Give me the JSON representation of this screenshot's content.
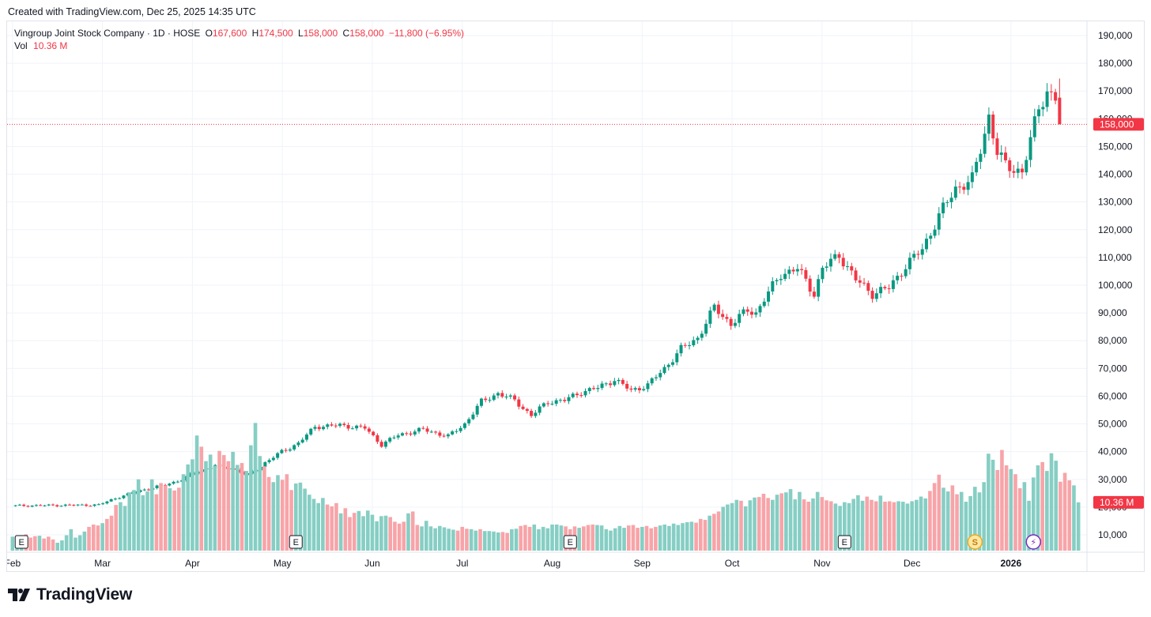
{
  "header": {
    "created_text": "Created with TradingView.com, Dec 25, 2025 14:35 UTC"
  },
  "legend": {
    "symbol": "Vingroup Joint Stock Company · 1D · HOSE",
    "o_label": "O",
    "o_value": "167,600",
    "h_label": "H",
    "h_value": "174,500",
    "l_label": "L",
    "l_value": "158,000",
    "c_label": "C",
    "c_value": "158,000",
    "change": "−11,800 (−6.95%)",
    "vol_label": "Vol",
    "vol_value": "10.36 M"
  },
  "brand": {
    "name": "TradingView"
  },
  "colors": {
    "up": "#089981",
    "down": "#f23645",
    "vol_up": "#86cec4",
    "vol_down": "#f7a4a8",
    "grid": "#f0f3fa",
    "text": "#131722"
  },
  "chart_data": {
    "type": "candlestick",
    "symbol": "VIC",
    "exchange": "HOSE",
    "interval": "1D",
    "y_axis": {
      "ylim": [
        0,
        195000
      ],
      "ticks": [
        10000,
        20000,
        30000,
        40000,
        50000,
        60000,
        70000,
        80000,
        90000,
        100000,
        110000,
        120000,
        130000,
        140000,
        150000,
        160000,
        170000,
        180000,
        190000
      ],
      "tick_labels": [
        "10,000",
        "20,000",
        "30,000",
        "40,000",
        "50,000",
        "60,000",
        "70,000",
        "80,000",
        "90,000",
        "100,000",
        "110,000",
        "120,000",
        "130,000",
        "140,000",
        "150,000",
        "160,000",
        "170,000",
        "180,000",
        "190,000"
      ],
      "position": "right"
    },
    "x_axis": {
      "labels": [
        "Feb",
        "Mar",
        "Apr",
        "May",
        "Jun",
        "Jul",
        "Aug",
        "Sep",
        "Oct",
        "Nov",
        "Dec",
        "2026"
      ],
      "label_day_index": [
        0,
        20,
        40,
        60,
        80,
        100,
        120,
        140,
        160,
        180,
        200,
        222
      ]
    },
    "grid": true,
    "last_price": {
      "value": 158000,
      "label": "158,000"
    },
    "last_volume": {
      "value": 10.36,
      "label": "10.36 M"
    },
    "candle_anchors": [
      [
        0,
        20500
      ],
      [
        20,
        20800
      ],
      [
        24,
        23200
      ],
      [
        30,
        26000
      ],
      [
        36,
        28000
      ],
      [
        40,
        30000
      ],
      [
        44,
        33000
      ],
      [
        48,
        35000
      ],
      [
        52,
        34000
      ],
      [
        56,
        31500
      ],
      [
        60,
        36000
      ],
      [
        64,
        40000
      ],
      [
        68,
        43000
      ],
      [
        72,
        49000
      ],
      [
        78,
        49500
      ],
      [
        84,
        48500
      ],
      [
        88,
        42500
      ],
      [
        92,
        46000
      ],
      [
        98,
        48000
      ],
      [
        104,
        45500
      ],
      [
        108,
        50000
      ],
      [
        112,
        58000
      ],
      [
        116,
        61000
      ],
      [
        120,
        58500
      ],
      [
        124,
        53000
      ],
      [
        128,
        58000
      ],
      [
        132,
        58500
      ],
      [
        136,
        61500
      ],
      [
        140,
        63000
      ],
      [
        144,
        66000
      ],
      [
        148,
        62000
      ],
      [
        152,
        64000
      ],
      [
        156,
        70000
      ],
      [
        160,
        77000
      ],
      [
        164,
        81000
      ],
      [
        168,
        92000
      ],
      [
        172,
        86000
      ],
      [
        176,
        91000
      ],
      [
        178,
        90000
      ],
      [
        180,
        95000
      ],
      [
        184,
        104000
      ],
      [
        188,
        106000
      ],
      [
        192,
        97000
      ],
      [
        194,
        106000
      ],
      [
        198,
        111000
      ],
      [
        202,
        102000
      ],
      [
        206,
        97000
      ],
      [
        210,
        99000
      ],
      [
        214,
        107000
      ],
      [
        218,
        113000
      ],
      [
        222,
        125000
      ],
      [
        226,
        135000
      ],
      [
        230,
        138000
      ],
      [
        232,
        149000
      ],
      [
        234,
        161000
      ],
      [
        236,
        148000
      ],
      [
        238,
        143000
      ],
      [
        242,
        141000
      ],
      [
        244,
        152000
      ],
      [
        246,
        164000
      ],
      [
        248,
        170000
      ],
      [
        250,
        167600
      ],
      [
        251,
        158000
      ]
    ],
    "volume_bars_millions": [
      3,
      2.5,
      3,
      3.5,
      2.8,
      3.1,
      3.2,
      2.6,
      3,
      2.4,
      1.7,
      2.2,
      3.3,
      4.6,
      2.8,
      3.3,
      4.1,
      5.1,
      5.6,
      5.4,
      5.9,
      6.8,
      7.5,
      9.8,
      10.4,
      9.6,
      12.5,
      13,
      15.3,
      11.9,
      12.7,
      15.3,
      12.1,
      14.5,
      14,
      13.4,
      12.9,
      13.5,
      16.4,
      18.5,
      19.6,
      24.7,
      22.3,
      19.2,
      20.6,
      18.2,
      21.4,
      20.5,
      19.2,
      21.2,
      18.4,
      18.8,
      17.1,
      22.6,
      27.4,
      20.3,
      18.1,
      15.8,
      14.7,
      16.2,
      15.2,
      16.4,
      13,
      14.4,
      14.6,
      13.3,
      12,
      11.1,
      10.2,
      11.3,
      9.9,
      9.5,
      10.2,
      8,
      9.1,
      7.2,
      8.1,
      8.5,
      7.4,
      8.6,
      7.7,
      6.3,
      7.4,
      7.5,
      7.2,
      6.2,
      5.8,
      6.2,
      8,
      8.4,
      5.5,
      5.2,
      6.4,
      5.2,
      4.8,
      5.3,
      5,
      4.7,
      4.5,
      4.3,
      5.1,
      4.7,
      4.6,
      4.3,
      4.6,
      4.2,
      4.2,
      4.1,
      3.9,
      4,
      3.8,
      4.6,
      4.7,
      5.3,
      5.5,
      5.1,
      5.6,
      4.6,
      5.1,
      4.8,
      5.6,
      5.6,
      5.4,
      5.2,
      4.6,
      5.2,
      4.9,
      5.2,
      5.5,
      5.6,
      5.5,
      5.4,
      4.6,
      4.3,
      4.8,
      5.3,
      4.9,
      5.4,
      5.5,
      4.9,
      5.1,
      5.3,
      4.8,
      5.1,
      5.4,
      5.6,
      5.3,
      5.8,
      5.5,
      5.9,
      6.1,
      6.2,
      6,
      6.8,
      6.6,
      7.5,
      7.9,
      8.4,
      9.4,
      9.9,
      10.2,
      10.9,
      10.7,
      9.5,
      10.8,
      11.4,
      11.5,
      12.2,
      11.3,
      10.9,
      12,
      12.3,
      12.5,
      13.2,
      11,
      12.6,
      11,
      10.5,
      11.2,
      12.6,
      11.5,
      10.8,
      10.6,
      10.1,
      9.6,
      10.4,
      10.2,
      11.1,
      11.9,
      10.7,
      11.6,
      10.9,
      10.6,
      11.8,
      10.5,
      10.6,
      10.4,
      10.6,
      10.5,
      10.1,
      10.6,
      10.9,
      11.6,
      11.2,
      12.8,
      14.5,
      16.3,
      13.5,
      12.7,
      14,
      12.1,
      12.6,
      10.5,
      11.7,
      13.7,
      12.5,
      14.7,
      20.8,
      19.5,
      17.3,
      21.6,
      18.3,
      17.5,
      16.4,
      13.4,
      14.7,
      10.7,
      15.7,
      18.3,
      19,
      17.1,
      20.9,
      19.3,
      14.8,
      16.7,
      15.1,
      14,
      10.36
    ],
    "event_markers": [
      {
        "type": "earnings",
        "label": "E",
        "day_index": 2
      },
      {
        "type": "earnings",
        "label": "E",
        "day_index": 63
      },
      {
        "type": "earnings",
        "label": "E",
        "day_index": 124
      },
      {
        "type": "earnings",
        "label": "E",
        "day_index": 185
      },
      {
        "type": "dividend",
        "label": "S",
        "day_index": 214
      },
      {
        "type": "split",
        "label": "⚡",
        "day_index": 227
      }
    ]
  }
}
